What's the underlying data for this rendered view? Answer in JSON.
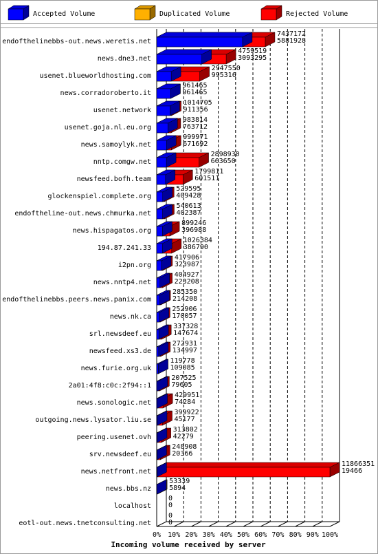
{
  "chart_data": {
    "type": "bar3d-stacked",
    "title": "Incoming volume received by server",
    "categories": [
      "endofthelinebbs-out.news.weretis.net",
      "news.dne3.net",
      "usenet.blueworldhosting.com",
      "news.corradoroberto.it",
      "usenet.network",
      "usenet.goja.nl.eu.org",
      "news.samoylyk.net",
      "nntp.comgw.net",
      "newsfeed.bofh.team",
      "glockenspiel.complete.org",
      "endoftheline-out.news.chmurka.net",
      "news.hispagatos.org",
      "194.87.241.33",
      "i2pn.org",
      "news.nntp4.net",
      "endofthelinebbs.peers.news.panix.com",
      "news.nk.ca",
      "srl.newsdeef.eu",
      "newsfeed.xs3.de",
      "news.furie.org.uk",
      "2a01:4f8:c0c:2f94::1",
      "news.sonologic.net",
      "outgoing.news.lysator.liu.se",
      "peering.usenet.ovh",
      "srv.newsdeef.eu",
      "news.netfront.net",
      "news.bbs.nz",
      "localhost",
      "eotl-out.news.tnetconsulting.net"
    ],
    "totals": [
      7437172,
      4759519,
      2947550,
      961465,
      1014705,
      983814,
      999971,
      2898930,
      1799811,
      529595,
      540613,
      899246,
      1026384,
      417906,
      404927,
      285350,
      252906,
      337328,
      272931,
      119778,
      207525,
      429951,
      399922,
      313802,
      248908,
      11866351,
      53339,
      0,
      0
    ],
    "series": [
      {
        "name": "Accepted Volume",
        "color": "#0000ff",
        "values": [
          5881928,
          3093295,
          995316,
          961465,
          911356,
          763712,
          671692,
          663650,
          601511,
          409428,
          402387,
          396988,
          386790,
          323987,
          223208,
          214208,
          170057,
          147674,
          134997,
          109085,
          79605,
          74284,
          45177,
          42279,
          20366,
          19466,
          5894,
          0,
          0
        ]
      },
      {
        "name": "Duplicated Volume",
        "color": "#ffb000"
      },
      {
        "name": "Rejected Volume",
        "color": "#ff0000"
      }
    ],
    "rest_colors": [
      "#ff0000",
      "#ff0000",
      "#ff0000",
      "#ff0000",
      "#ff0000",
      "#ff0000",
      "#ff0000",
      "#ff0000",
      "#ff0000",
      "#ff0000",
      "#ff0000",
      "#ff0000",
      "#ff0000",
      "#ff0000",
      "#ff0000",
      "#ff0000",
      "#ff0000",
      "#ff0000",
      "#ff0000",
      "#ff0000",
      "#ff0000",
      "#ff0000",
      "#ff0000",
      "#ff0000",
      "#ff0000",
      "#ff0000",
      "#c08000",
      "#ff0000",
      "#ff0000"
    ],
    "xlim": [
      0,
      100
    ],
    "xticks": [
      {
        "value": 0,
        "label": "0%"
      },
      {
        "value": 10,
        "label": "10%"
      },
      {
        "value": 20,
        "label": "20%"
      },
      {
        "value": 30,
        "label": "30%"
      },
      {
        "value": 40,
        "label": "40%"
      },
      {
        "value": 50,
        "label": "50%"
      },
      {
        "value": 60,
        "label": "60%"
      },
      {
        "value": 70,
        "label": "70%"
      },
      {
        "value": 80,
        "label": "80%"
      },
      {
        "value": 90,
        "label": "90%"
      },
      {
        "value": 100,
        "label": "100%"
      }
    ],
    "grid": true
  }
}
